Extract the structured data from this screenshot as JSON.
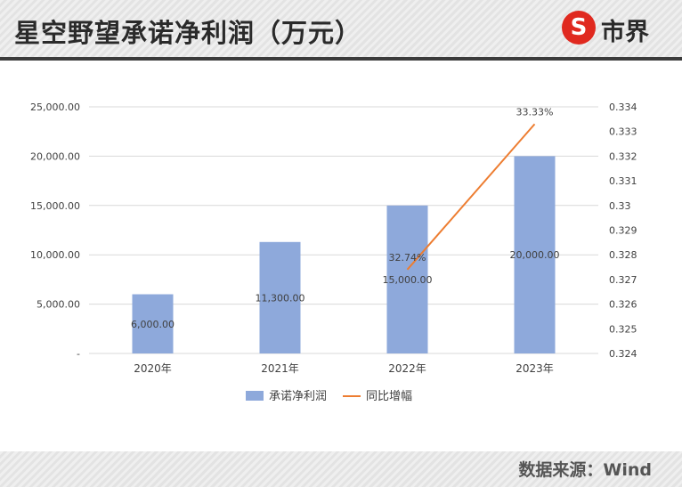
{
  "header": {
    "title": "星空野望承诺净利润（万元）",
    "logo_text": "市界",
    "logo_icon": "s-circle-logo-icon"
  },
  "footer": {
    "source": "数据来源：Wind"
  },
  "colors": {
    "bar": "#8EA9DB",
    "line": "#ED7D31",
    "brand": "#E0291F",
    "header_rule": "#3B3B3B"
  },
  "chart_data": {
    "type": "bar",
    "title": "",
    "categories": [
      "2020年",
      "2021年",
      "2022年",
      "2023年"
    ],
    "series": [
      {
        "name": "承诺净利润",
        "type": "bar",
        "axis": "left",
        "values": [
          6000,
          11300,
          15000,
          20000
        ],
        "labels": [
          "6,000.00",
          "11,300.00",
          "15,000.00",
          "20,000.00"
        ]
      },
      {
        "name": "同比增幅",
        "type": "line",
        "axis": "right",
        "values": [
          null,
          null,
          0.3274,
          0.3333
        ],
        "labels": [
          "",
          "",
          "32.74%",
          "33.33%"
        ]
      }
    ],
    "y_left": {
      "range": [
        0,
        25000
      ],
      "ticks": [
        "-",
        "5,000.00",
        "10,000.00",
        "15,000.00",
        "20,000.00",
        "25,000.00"
      ]
    },
    "y_right": {
      "range": [
        0.324,
        0.334
      ],
      "ticks": [
        "0.324",
        "0.325",
        "0.326",
        "0.327",
        "0.328",
        "0.329",
        "0.33",
        "0.331",
        "0.332",
        "0.333",
        "0.334"
      ]
    },
    "grid": true,
    "legend_position": "bottom-center"
  }
}
